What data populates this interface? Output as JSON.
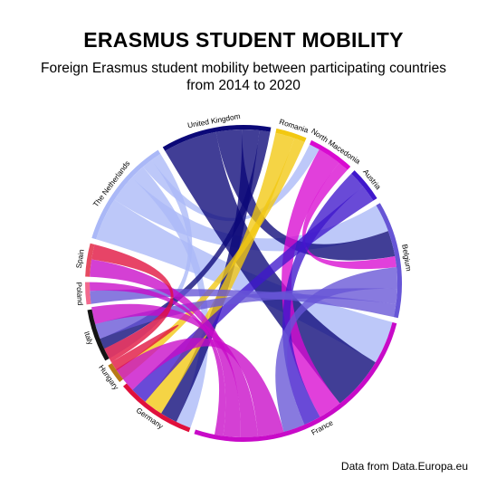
{
  "chart_data": {
    "type": "chord",
    "title": "ERASMUS STUDENT MOBILITY",
    "subtitle_lines": [
      "Foreign Erasmus student mobility between participating countries",
      "from 2014 to 2020"
    ],
    "caption": "Data from Data.Europa.eu",
    "sectors": [
      {
        "name": "The Netherlands",
        "color": "#aab8f7",
        "size": 5.0
      },
      {
        "name": "United Kingdom",
        "color": "#0b0878",
        "size": 5.0
      },
      {
        "name": "Romania",
        "color": "#f2c811",
        "size": 1.4
      },
      {
        "name": "North Macedonia",
        "color": "#d90ad1",
        "size": 2.1
      },
      {
        "name": "Austria",
        "color": "#3f17cc",
        "size": 1.6
      },
      {
        "name": "Belgium",
        "color": "#6655d6",
        "size": 5.3
      },
      {
        "name": "France",
        "color": "#c80ac8",
        "size": 11.5
      },
      {
        "name": "Germany",
        "color": "#e0103c",
        "size": 3.6
      },
      {
        "name": "Hungary",
        "color": "#b77a17",
        "size": 0.9
      },
      {
        "name": "Italy",
        "color": "#141414",
        "size": 2.4
      },
      {
        "name": "Poland",
        "color": "#f2698e",
        "size": 1.0
      },
      {
        "name": "Spain",
        "color": "#e64a60",
        "size": 1.5
      }
    ],
    "flows": [
      {
        "from": "The Netherlands",
        "to": "France",
        "value": 2.0
      },
      {
        "from": "The Netherlands",
        "to": "Belgium",
        "value": 1.3
      },
      {
        "from": "The Netherlands",
        "to": "Germany",
        "value": 0.7
      },
      {
        "from": "The Netherlands",
        "to": "North Macedonia",
        "value": 0.5
      },
      {
        "from": "The Netherlands",
        "to": "Italy",
        "value": 0.5
      },
      {
        "from": "United Kingdom",
        "to": "France",
        "value": 2.5
      },
      {
        "from": "United Kingdom",
        "to": "Belgium",
        "value": 1.2
      },
      {
        "from": "United Kingdom",
        "to": "Germany",
        "value": 0.8
      },
      {
        "from": "United Kingdom",
        "to": "Italy",
        "value": 0.5
      },
      {
        "from": "Romania",
        "to": "Germany",
        "value": 0.9
      },
      {
        "from": "Romania",
        "to": "Hungary",
        "value": 0.5
      },
      {
        "from": "North Macedonia",
        "to": "France",
        "value": 1.1
      },
      {
        "from": "North Macedonia",
        "to": "Belgium",
        "value": 0.5
      },
      {
        "from": "Austria",
        "to": "France",
        "value": 0.8
      },
      {
        "from": "Austria",
        "to": "Germany",
        "value": 0.8
      },
      {
        "from": "Belgium",
        "to": "France",
        "value": 1.0
      },
      {
        "from": "Belgium",
        "to": "Italy",
        "value": 0.7
      },
      {
        "from": "Belgium",
        "to": "Poland",
        "value": 0.6
      },
      {
        "from": "France",
        "to": "Germany",
        "value": 1.2
      },
      {
        "from": "France",
        "to": "Italy",
        "value": 0.8
      },
      {
        "from": "France",
        "to": "Spain",
        "value": 0.8
      },
      {
        "from": "France",
        "to": "Poland",
        "value": 0.4
      },
      {
        "from": "Germany",
        "to": "Hungary",
        "value": 0.4
      },
      {
        "from": "Germany",
        "to": "Spain",
        "value": 0.7
      }
    ]
  }
}
